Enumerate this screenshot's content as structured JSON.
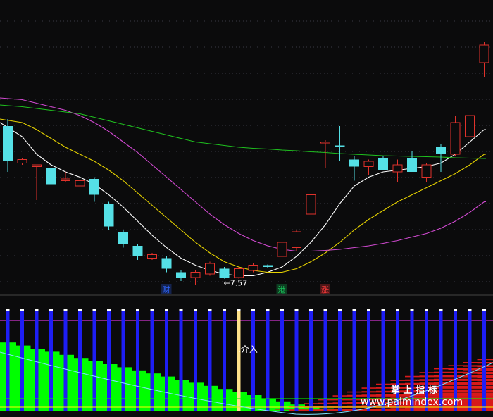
{
  "chart_data": [
    {
      "type": "candlestick",
      "title": "",
      "price_annotation": {
        "label": "←7.57",
        "value": 7.57,
        "candle_index": 15
      },
      "candles": [
        {
          "o": 11.9,
          "h": 12.1,
          "l": 10.6,
          "c": 10.9
        },
        {
          "o": 10.85,
          "h": 11.0,
          "l": 10.8,
          "c": 10.95
        },
        {
          "o": 10.75,
          "h": 10.8,
          "l": 9.8,
          "c": 10.8
        },
        {
          "o": 10.7,
          "h": 10.75,
          "l": 10.15,
          "c": 10.25
        },
        {
          "o": 10.35,
          "h": 10.6,
          "l": 10.3,
          "c": 10.4
        },
        {
          "o": 10.2,
          "h": 10.45,
          "l": 10.1,
          "c": 10.35
        },
        {
          "o": 10.4,
          "h": 10.45,
          "l": 9.75,
          "c": 9.95
        },
        {
          "o": 9.7,
          "h": 9.75,
          "l": 8.95,
          "c": 9.05
        },
        {
          "o": 8.9,
          "h": 8.95,
          "l": 8.45,
          "c": 8.55
        },
        {
          "o": 8.5,
          "h": 8.55,
          "l": 8.1,
          "c": 8.2
        },
        {
          "o": 8.15,
          "h": 8.3,
          "l": 8.1,
          "c": 8.25
        },
        {
          "o": 8.15,
          "h": 8.2,
          "l": 7.75,
          "c": 7.85
        },
        {
          "o": 7.75,
          "h": 7.8,
          "l": 7.5,
          "c": 7.6
        },
        {
          "o": 7.6,
          "h": 7.8,
          "l": 7.4,
          "c": 7.75
        },
        {
          "o": 7.7,
          "h": 8.05,
          "l": 7.65,
          "c": 8.0
        },
        {
          "o": 7.85,
          "h": 7.9,
          "l": 7.57,
          "c": 7.6
        },
        {
          "o": 7.6,
          "h": 7.9,
          "l": 7.57,
          "c": 7.85
        },
        {
          "o": 7.8,
          "h": 8.0,
          "l": 7.75,
          "c": 7.95
        },
        {
          "o": 7.95,
          "h": 7.97,
          "l": 7.88,
          "c": 7.9
        },
        {
          "o": 8.2,
          "h": 8.9,
          "l": 8.15,
          "c": 8.6
        },
        {
          "o": 8.45,
          "h": 8.95,
          "l": 8.35,
          "c": 8.9
        },
        {
          "o": 9.4,
          "h": 9.95,
          "l": 9.4,
          "c": 9.95
        },
        {
          "o": 11.45,
          "h": 11.5,
          "l": 10.7,
          "c": 11.45
        },
        {
          "o": 11.35,
          "h": 11.9,
          "l": 10.9,
          "c": 11.3
        },
        {
          "o": 10.95,
          "h": 11.05,
          "l": 10.35,
          "c": 10.75
        },
        {
          "o": 10.75,
          "h": 10.95,
          "l": 10.5,
          "c": 10.9
        },
        {
          "o": 11.0,
          "h": 11.05,
          "l": 10.65,
          "c": 10.65
        },
        {
          "o": 10.6,
          "h": 10.95,
          "l": 10.3,
          "c": 10.8
        },
        {
          "o": 11.0,
          "h": 11.2,
          "l": 10.6,
          "c": 10.6
        },
        {
          "o": 10.45,
          "h": 10.85,
          "l": 10.3,
          "c": 10.8
        },
        {
          "o": 11.3,
          "h": 11.4,
          "l": 10.6,
          "c": 11.1
        },
        {
          "o": 11.1,
          "h": 12.2,
          "l": 11.05,
          "c": 12.0
        },
        {
          "o": 11.6,
          "h": 12.2,
          "l": 11.6,
          "c": 12.2
        },
        {
          "o": 13.7,
          "h": 14.3,
          "l": 13.3,
          "c": 14.2
        }
      ],
      "moving_averages": [
        {
          "color": "#ffffff",
          "values": [
            12.0,
            11.6,
            11.1,
            10.8,
            10.6,
            10.45,
            10.25,
            9.95,
            9.6,
            9.2,
            8.8,
            8.45,
            8.15,
            7.95,
            7.8,
            7.7,
            7.65,
            7.65,
            7.75,
            7.9,
            8.2,
            8.6,
            9.1,
            9.7,
            10.2,
            10.45,
            10.6,
            10.65,
            10.7,
            10.75,
            10.85,
            11.1,
            11.45,
            11.8
          ]
        },
        {
          "color": "#e6d200",
          "values": [
            12.1,
            12.0,
            11.8,
            11.55,
            11.3,
            11.1,
            10.9,
            10.65,
            10.35,
            10.0,
            9.65,
            9.3,
            8.95,
            8.6,
            8.3,
            8.05,
            7.9,
            7.8,
            7.75,
            7.75,
            7.85,
            8.05,
            8.3,
            8.6,
            8.95,
            9.25,
            9.5,
            9.75,
            9.95,
            10.15,
            10.35,
            10.55,
            10.8,
            11.1
          ]
        },
        {
          "color": "#d24ad2",
          "values": [
            12.7,
            12.65,
            12.55,
            12.45,
            12.35,
            12.2,
            12.0,
            11.75,
            11.45,
            11.15,
            10.8,
            10.45,
            10.1,
            9.75,
            9.4,
            9.1,
            8.85,
            8.65,
            8.5,
            8.4,
            8.35,
            8.35,
            8.37,
            8.4,
            8.45,
            8.5,
            8.57,
            8.65,
            8.75,
            8.85,
            9.0,
            9.2,
            9.45,
            9.75
          ]
        },
        {
          "color": "#1fc21f",
          "values": [
            12.5,
            12.45,
            12.4,
            12.35,
            12.3,
            12.25,
            12.15,
            12.05,
            11.95,
            11.85,
            11.75,
            11.65,
            11.55,
            11.45,
            11.4,
            11.35,
            11.3,
            11.27,
            11.25,
            11.22,
            11.2,
            11.17,
            11.15,
            11.12,
            11.1,
            11.08,
            11.06,
            11.05,
            11.04,
            11.03,
            11.02,
            11.0,
            10.99,
            10.98
          ]
        }
      ],
      "event_markers": [
        {
          "label": "财",
          "color": "#2f66ff",
          "candle_index": 11
        },
        {
          "label": "港",
          "color": "#19c25a",
          "candle_index": 19
        },
        {
          "label": "涨",
          "color": "#ff3b3b",
          "candle_index": 22
        }
      ]
    },
    {
      "type": "indicator",
      "title": "",
      "annotation": ".介入",
      "bar_count": 34,
      "signal_bar_index": 16,
      "green_band_top": [
        0.88,
        0.84,
        0.8,
        0.76,
        0.72,
        0.68,
        0.64,
        0.6,
        0.56,
        0.52,
        0.48,
        0.44,
        0.4,
        0.36,
        0.32,
        0.28,
        0.24,
        0.2,
        0.16,
        0.12,
        0.08,
        0.05,
        0.03,
        0.01
      ],
      "red_band_top": [
        0.02,
        0.05,
        0.09,
        0.14,
        0.19,
        0.24,
        0.29,
        0.34,
        0.39,
        0.44,
        0.49,
        0.54,
        0.58,
        0.62,
        0.66
      ],
      "colors": {
        "blue_bar": "#1e1ef5",
        "green": "#00ff00",
        "red": "#d81a1a",
        "signal": "#ffe28a",
        "magenta_line": "#ff3cff",
        "yellow_line": "#ffff00"
      }
    }
  ],
  "watermark": {
    "title": "掌 上 指 标",
    "url": "www.palmindex.com"
  }
}
